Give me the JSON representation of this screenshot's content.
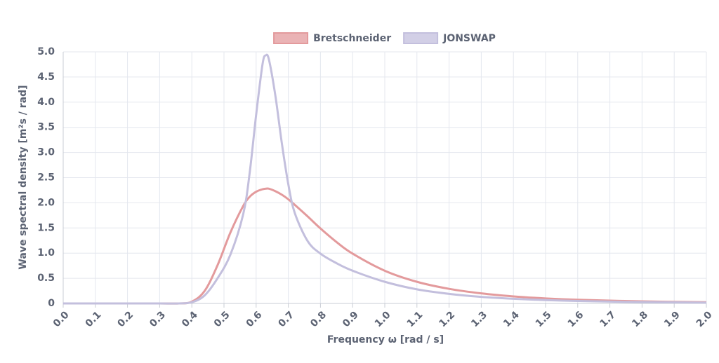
{
  "chart_data": {
    "type": "line",
    "xlabel": "Frequency ω [rad / s]",
    "ylabel": "Wave spectral density [m²s / rad]",
    "x": [
      0,
      0.1,
      0.2,
      0.3,
      0.36,
      0.4,
      0.44,
      0.48,
      0.52,
      0.56,
      0.58,
      0.6,
      0.62,
      0.63,
      0.64,
      0.66,
      0.68,
      0.7,
      0.72,
      0.76,
      0.8,
      0.85,
      0.9,
      1.0,
      1.1,
      1.2,
      1.3,
      1.4,
      1.5,
      1.6,
      1.8,
      2.0
    ],
    "series": [
      {
        "name": "Bretschneider",
        "color": "#e39a9c",
        "values": [
          0,
          0,
          0,
          0,
          0,
          0.035,
          0.25,
          0.76,
          1.41,
          1.94,
          2.12,
          2.22,
          2.27,
          2.28,
          2.28,
          2.23,
          2.16,
          2.07,
          1.96,
          1.73,
          1.49,
          1.22,
          0.99,
          0.65,
          0.43,
          0.29,
          0.2,
          0.14,
          0.1,
          0.073,
          0.041,
          0.024
        ]
      },
      {
        "name": "JONSWAP",
        "color": "#c3bfdd",
        "values": [
          0,
          0,
          0,
          0,
          0,
          0.023,
          0.16,
          0.5,
          0.97,
          1.78,
          2.6,
          3.75,
          4.76,
          4.93,
          4.84,
          4.12,
          3.18,
          2.37,
          1.8,
          1.24,
          0.99,
          0.8,
          0.65,
          0.43,
          0.28,
          0.19,
          0.13,
          0.092,
          0.066,
          0.048,
          0.027,
          0.016
        ]
      }
    ],
    "xlim": [
      0,
      2
    ],
    "ylim": [
      0,
      5
    ],
    "xticks": [
      {
        "value": 0,
        "label": "0.0"
      },
      0.1,
      0.2,
      0.3,
      0.4,
      0.5,
      0.6,
      0.7,
      0.8,
      0.9,
      {
        "value": 1,
        "label": "1.0"
      },
      1.1,
      1.2,
      1.3,
      1.4,
      1.5,
      1.6,
      1.7,
      1.8,
      1.9,
      {
        "value": 2,
        "label": "2.0"
      }
    ],
    "yticks": [
      0,
      0.5,
      {
        "value": 1,
        "label": "1.0"
      },
      1.5,
      {
        "value": 2,
        "label": "2.0"
      },
      2.5,
      {
        "value": 3,
        "label": "3.0"
      },
      3.5,
      {
        "value": 4,
        "label": "4.0"
      },
      4.5,
      {
        "value": 5,
        "label": "5.0"
      }
    ],
    "grid": true,
    "legend": "top"
  }
}
